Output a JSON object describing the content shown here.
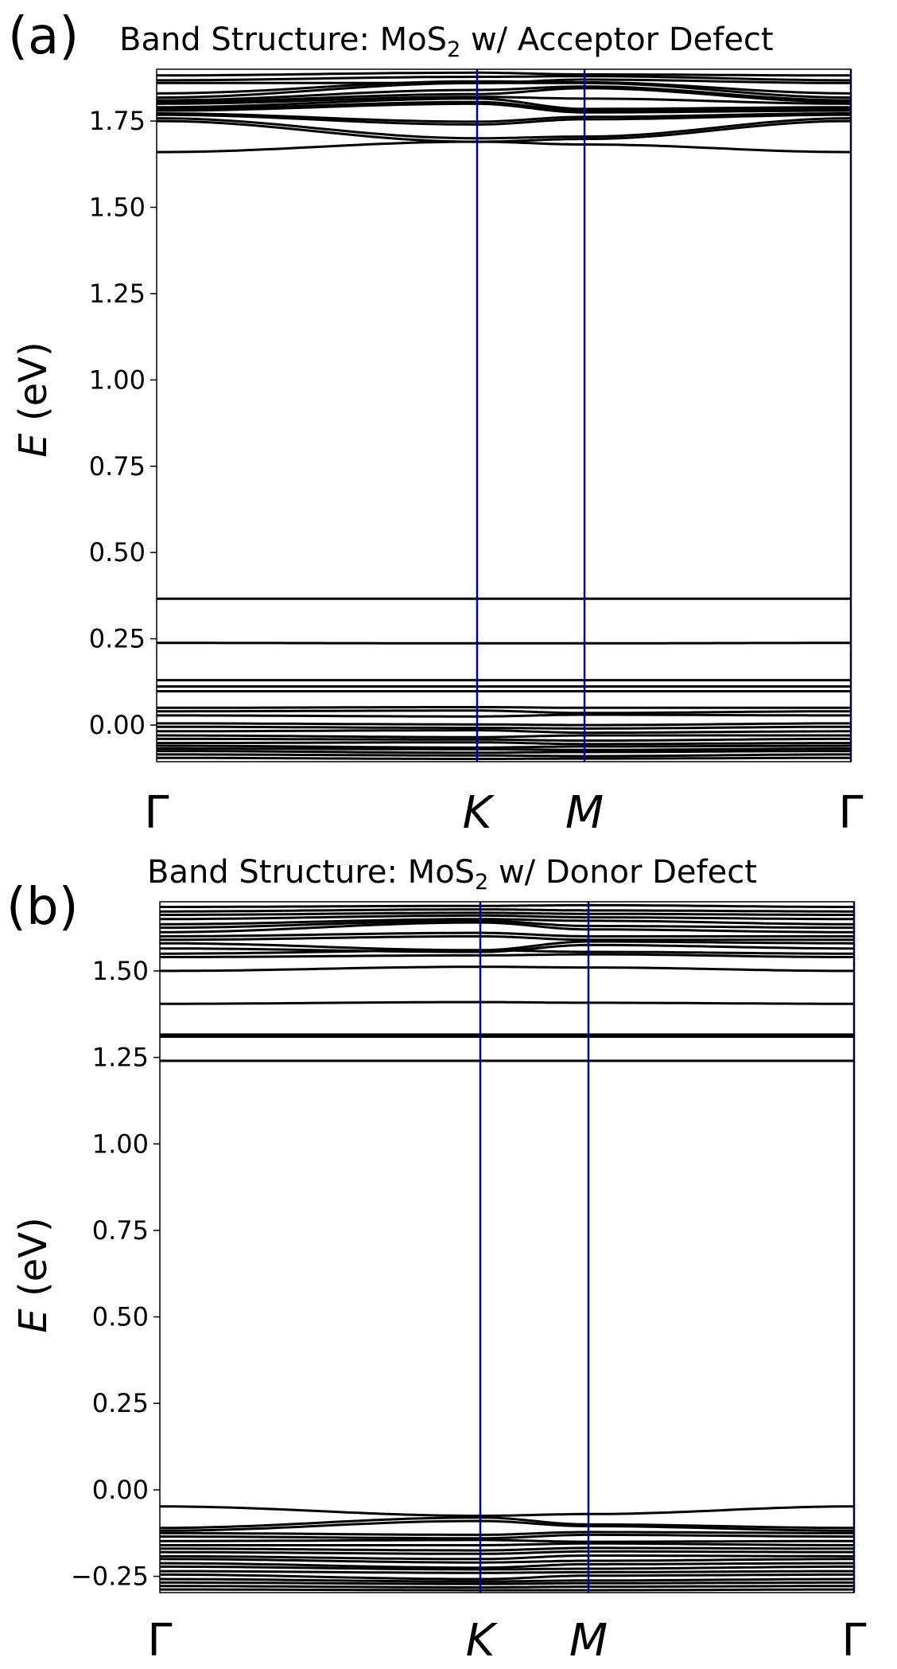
{
  "figure": {
    "panels": [
      {
        "label": "(a)",
        "title_prefix": "Band Structure: MoS",
        "title_sub": "2",
        "title_suffix": " w/ Acceptor Defect",
        "ylabel_var": "E",
        "ylabel_unit": " (eV)"
      },
      {
        "label": "(b)",
        "title_prefix": "Band Structure: MoS",
        "title_sub": "2",
        "title_suffix": " w/ Donor Defect",
        "ylabel_var": "E",
        "ylabel_unit": " (eV)"
      }
    ]
  },
  "chart_data": [
    {
      "type": "line",
      "title": "Band Structure: MoS2 w/ Acceptor Defect",
      "panel_label": "(a)",
      "xlabel": "",
      "ylabel": "E (eV)",
      "x_ticks": [
        "Γ",
        "K",
        "M",
        "Γ"
      ],
      "x_tick_positions": [
        0.0,
        0.4616,
        0.6163,
        1.0
      ],
      "ylim": [
        -0.106,
        1.9
      ],
      "y_ticks": [
        0.0,
        0.25,
        0.5,
        0.75,
        1.0,
        1.25,
        1.5,
        1.75
      ],
      "y_tick_labels": [
        "0.00",
        "0.25",
        "0.50",
        "0.75",
        "1.00",
        "1.25",
        "1.50",
        "1.75"
      ],
      "kpoint_line_color": "#0000a0",
      "band_color": "#000000",
      "grid": false,
      "bands_at_kpoints_note": "energies (eV) at Γ, K, M, Γ",
      "bands": [
        [
          1.66,
          1.69,
          1.682,
          1.66
        ],
        [
          1.75,
          1.69,
          1.698,
          1.75
        ],
        [
          1.758,
          1.7,
          1.705,
          1.758
        ],
        [
          1.768,
          1.74,
          1.755,
          1.768
        ],
        [
          1.772,
          1.748,
          1.762,
          1.772
        ],
        [
          1.78,
          1.8,
          1.775,
          1.78
        ],
        [
          1.785,
          1.805,
          1.78,
          1.785
        ],
        [
          1.79,
          1.815,
          1.785,
          1.79
        ],
        [
          1.8,
          1.82,
          1.815,
          1.8
        ],
        [
          1.805,
          1.828,
          1.845,
          1.805
        ],
        [
          1.81,
          1.84,
          1.85,
          1.81
        ],
        [
          1.818,
          1.86,
          1.86,
          1.818
        ],
        [
          1.83,
          1.865,
          1.862,
          1.83
        ],
        [
          1.86,
          1.86,
          1.87,
          1.86
        ],
        [
          1.868,
          1.878,
          1.88,
          1.868
        ],
        [
          1.882,
          1.89,
          1.885,
          1.882
        ],
        [
          0.366,
          0.366,
          0.366,
          0.366
        ],
        [
          0.238,
          0.237,
          0.237,
          0.238
        ],
        [
          0.13,
          0.13,
          0.13,
          0.13
        ],
        [
          0.112,
          0.112,
          0.112,
          0.112
        ],
        [
          0.098,
          0.098,
          0.098,
          0.098
        ],
        [
          0.05,
          0.052,
          0.05,
          0.05
        ],
        [
          0.04,
          0.042,
          0.035,
          0.04
        ],
        [
          0.028,
          0.025,
          0.03,
          0.028
        ],
        [
          0.005,
          0.002,
          0.0,
          0.005
        ],
        [
          -0.005,
          -0.008,
          -0.01,
          -0.005
        ],
        [
          -0.018,
          -0.015,
          -0.022,
          -0.018
        ],
        [
          -0.03,
          -0.035,
          -0.03,
          -0.03
        ],
        [
          -0.04,
          -0.042,
          -0.045,
          -0.04
        ],
        [
          -0.052,
          -0.05,
          -0.055,
          -0.052
        ],
        [
          -0.06,
          -0.065,
          -0.062,
          -0.06
        ],
        [
          -0.068,
          -0.07,
          -0.072,
          -0.068
        ],
        [
          -0.075,
          -0.08,
          -0.078,
          -0.075
        ],
        [
          -0.085,
          -0.088,
          -0.09,
          -0.085
        ],
        [
          -0.095,
          -0.098,
          -0.097,
          -0.095
        ]
      ]
    },
    {
      "type": "line",
      "title": "Band Structure: MoS2 w/ Donor Defect",
      "panel_label": "(b)",
      "xlabel": "",
      "ylabel": "E (eV)",
      "x_ticks": [
        "Γ",
        "K",
        "M",
        "Γ"
      ],
      "x_tick_positions": [
        0.0,
        0.4616,
        0.6174,
        1.0
      ],
      "ylim": [
        -0.297,
        1.7
      ],
      "y_ticks": [
        -0.25,
        0.0,
        0.25,
        0.5,
        0.75,
        1.0,
        1.25,
        1.5
      ],
      "y_tick_labels": [
        "−0.25",
        "0.00",
        "0.25",
        "0.50",
        "0.75",
        "1.00",
        "1.25",
        "1.50"
      ],
      "kpoint_line_color": "#0000a0",
      "band_color": "#000000",
      "grid": false,
      "bands_at_kpoints_note": "energies (eV) at Γ, K, M, Γ",
      "bands": [
        [
          1.24,
          1.24,
          1.24,
          1.24
        ],
        [
          1.31,
          1.31,
          1.31,
          1.31
        ],
        [
          1.316,
          1.316,
          1.316,
          1.316
        ],
        [
          1.405,
          1.41,
          1.408,
          1.405
        ],
        [
          1.5,
          1.512,
          1.51,
          1.5
        ],
        [
          1.54,
          1.545,
          1.548,
          1.54
        ],
        [
          1.55,
          1.56,
          1.555,
          1.55
        ],
        [
          1.565,
          1.555,
          1.575,
          1.565
        ],
        [
          1.58,
          1.56,
          1.585,
          1.58
        ],
        [
          1.59,
          1.6,
          1.59,
          1.59
        ],
        [
          1.6,
          1.61,
          1.6,
          1.6
        ],
        [
          1.612,
          1.64,
          1.62,
          1.612
        ],
        [
          1.625,
          1.645,
          1.63,
          1.625
        ],
        [
          1.635,
          1.65,
          1.645,
          1.635
        ],
        [
          1.65,
          1.66,
          1.655,
          1.65
        ],
        [
          1.662,
          1.668,
          1.665,
          1.662
        ],
        [
          1.672,
          1.678,
          1.675,
          1.672
        ],
        [
          1.685,
          1.688,
          1.69,
          1.685
        ],
        [
          -0.048,
          -0.075,
          -0.07,
          -0.048
        ],
        [
          -0.11,
          -0.08,
          -0.1,
          -0.11
        ],
        [
          -0.118,
          -0.09,
          -0.105,
          -0.118
        ],
        [
          -0.125,
          -0.13,
          -0.122,
          -0.125
        ],
        [
          -0.135,
          -0.14,
          -0.13,
          -0.135
        ],
        [
          -0.148,
          -0.145,
          -0.15,
          -0.148
        ],
        [
          -0.16,
          -0.16,
          -0.155,
          -0.16
        ],
        [
          -0.17,
          -0.175,
          -0.168,
          -0.17
        ],
        [
          -0.18,
          -0.185,
          -0.178,
          -0.18
        ],
        [
          -0.192,
          -0.2,
          -0.19,
          -0.192
        ],
        [
          -0.2,
          -0.21,
          -0.205,
          -0.2
        ],
        [
          -0.212,
          -0.225,
          -0.215,
          -0.212
        ],
        [
          -0.222,
          -0.23,
          -0.228,
          -0.222
        ],
        [
          -0.235,
          -0.24,
          -0.238,
          -0.235
        ],
        [
          -0.245,
          -0.258,
          -0.248,
          -0.245
        ],
        [
          -0.258,
          -0.265,
          -0.262,
          -0.258
        ],
        [
          -0.268,
          -0.272,
          -0.27,
          -0.268
        ],
        [
          -0.278,
          -0.282,
          -0.28,
          -0.278
        ],
        [
          -0.288,
          -0.29,
          -0.29,
          -0.288
        ]
      ]
    }
  ]
}
